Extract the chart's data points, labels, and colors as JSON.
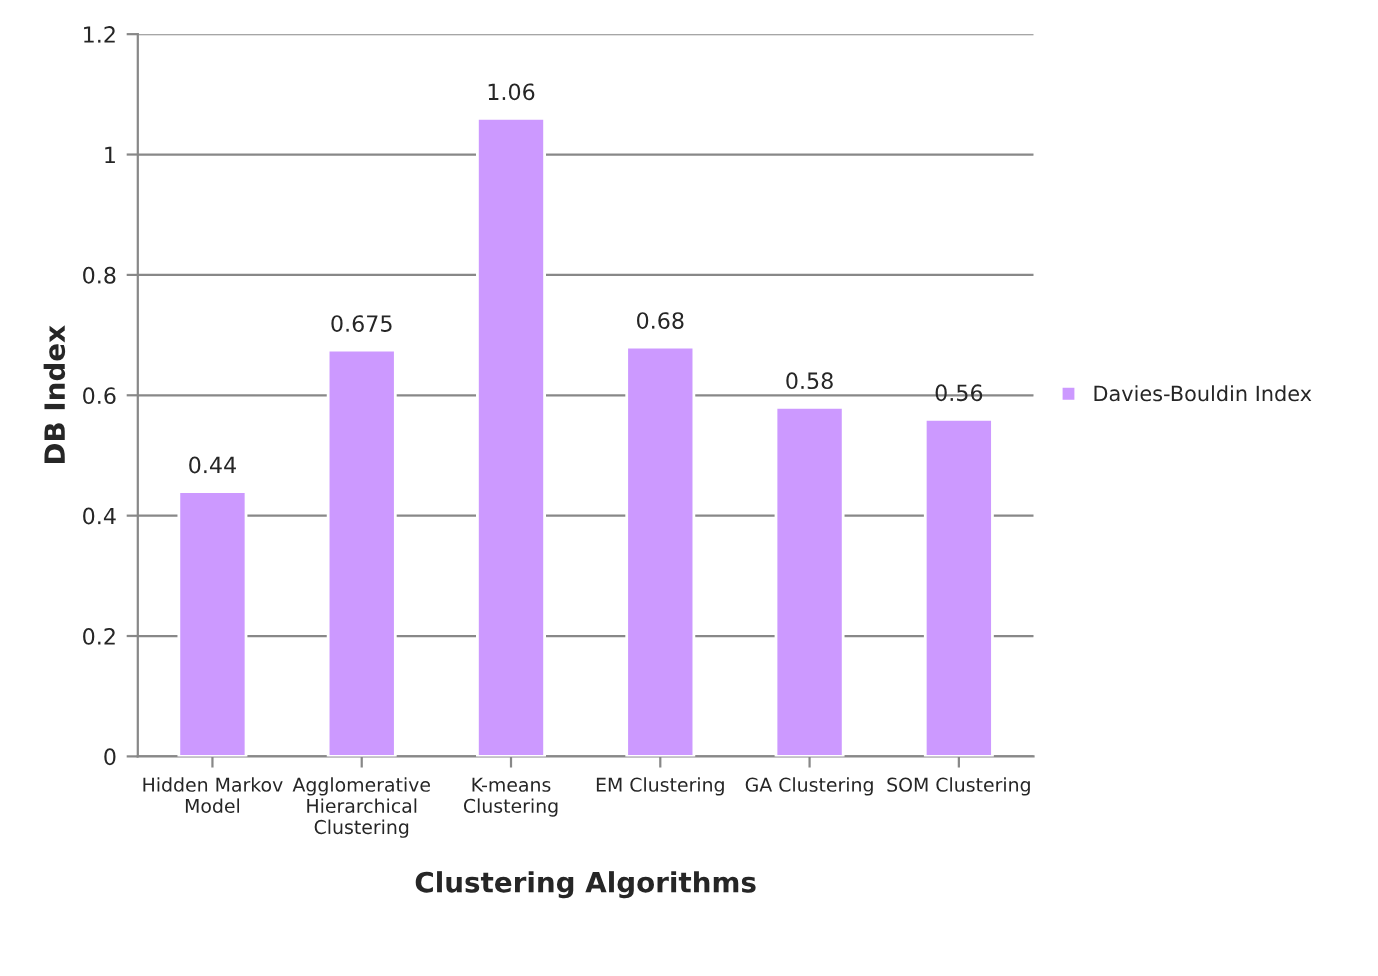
{
  "chart_data": {
    "type": "bar",
    "xlabel": "Clustering Algorithms",
    "ylabel": "DB Index",
    "categories": [
      "Hidden Markov\nModel",
      "Agglomerative\nHierarchical\nClustering",
      "K-means\nClustering",
      "EM Clustering",
      "GA Clustering",
      "SOM Clustering"
    ],
    "series": [
      {
        "name": "Davies-Bouldin Index",
        "color": "#cc99ff",
        "values": [
          0.44,
          0.675,
          1.06,
          0.68,
          0.58,
          0.56
        ]
      }
    ],
    "ylim": [
      0,
      1.2
    ],
    "yticks": [
      0,
      0.2,
      0.4,
      0.6,
      0.8,
      1,
      1.2
    ],
    "grid": "y",
    "legend": "right",
    "data_labels": true
  }
}
